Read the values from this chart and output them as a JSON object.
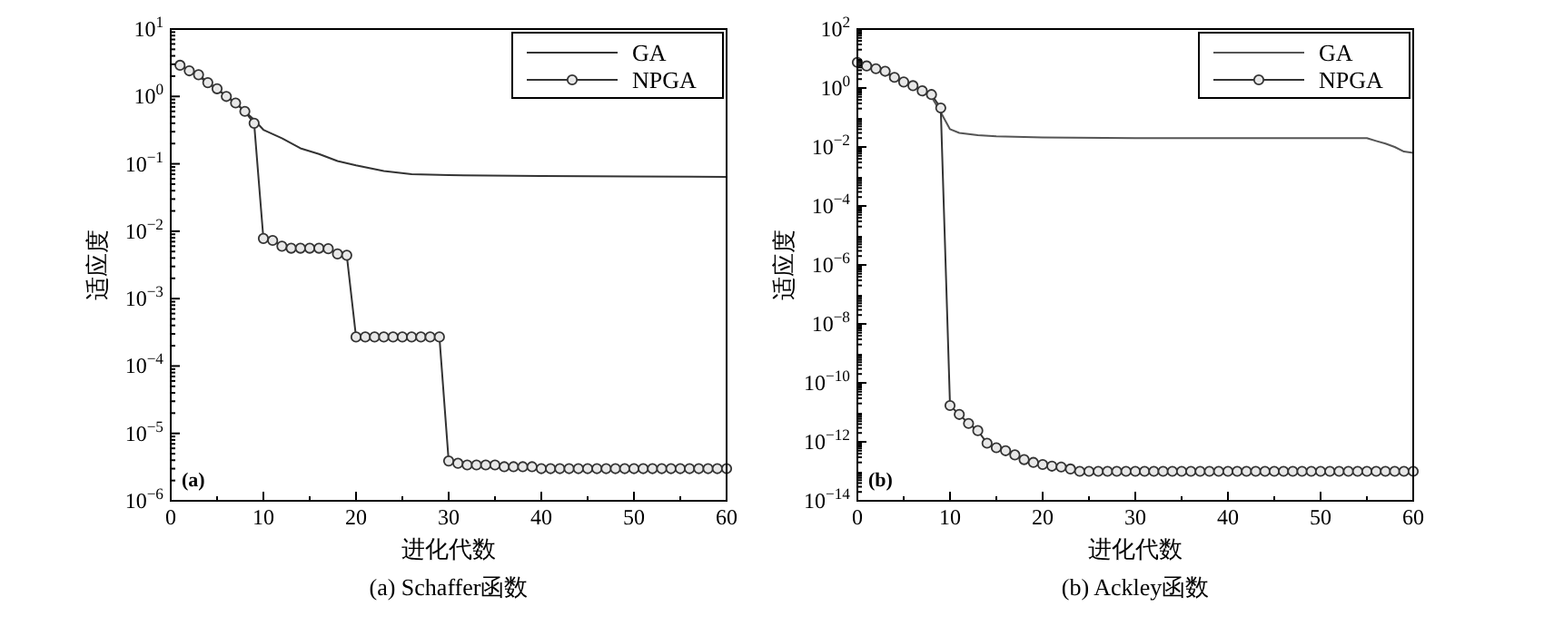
{
  "chart_data": [
    {
      "type": "line",
      "xlabel": "进化代数",
      "ylabel": "适应度",
      "annotations": [
        "(a)",
        "(a) Schaffer函数"
      ],
      "log": "y",
      "legend": "top right",
      "grid": false,
      "xlim": [
        0,
        60
      ],
      "xticks": [
        0,
        10,
        20,
        30,
        40,
        50,
        60
      ],
      "ylim": [
        1e-06,
        10
      ],
      "yticks": [
        {
          "value": 1e-06,
          "label": "10$^{−6}$"
        },
        {
          "value": 1e-05,
          "label": "10$^{−5}$"
        },
        {
          "value": 0.0001,
          "label": "10$^{−4}$"
        },
        {
          "value": 0.001,
          "label": "10$^{−3}$"
        },
        {
          "value": 0.01,
          "label": "10$^{−2}$"
        },
        {
          "value": 0.1,
          "label": "10$^{−1}$"
        },
        {
          "value": 1,
          "label": "10$^{0}$"
        },
        {
          "value": 10,
          "label": "10$^{1}$"
        }
      ],
      "series": [
        {
          "name": "GA",
          "color": "#333333",
          "marker": "none",
          "x": [
            1,
            2,
            3,
            4,
            5,
            6,
            7,
            8,
            9,
            10,
            12,
            14,
            16,
            18,
            20,
            23,
            26,
            30,
            40,
            50,
            60
          ],
          "values": [
            3,
            2.4,
            2.0,
            1.6,
            1.3,
            1.0,
            0.8,
            0.6,
            0.45,
            0.32,
            0.24,
            0.17,
            0.14,
            0.11,
            0.095,
            0.078,
            0.07,
            0.068,
            0.066,
            0.065,
            0.064
          ]
        },
        {
          "name": "NPGA",
          "color": "#333333",
          "marker": "circle",
          "x": [
            1,
            2,
            3,
            4,
            5,
            6,
            7,
            8,
            9,
            10,
            11,
            12,
            13,
            14,
            15,
            16,
            17,
            18,
            19,
            20,
            21,
            22,
            23,
            24,
            25,
            26,
            27,
            28,
            29,
            30,
            31,
            32,
            33,
            34,
            35,
            36,
            37,
            38,
            39,
            40,
            41,
            42,
            43,
            44,
            45,
            46,
            47,
            48,
            49,
            50,
            51,
            52,
            53,
            54,
            55,
            56,
            57,
            58,
            59,
            60
          ],
          "values": [
            2.9,
            2.4,
            2.1,
            1.6,
            1.3,
            1.0,
            0.8,
            0.6,
            0.4,
            0.0078,
            0.0073,
            0.006,
            0.0056,
            0.0056,
            0.0056,
            0.0056,
            0.0055,
            0.0046,
            0.0044,
            0.00027,
            0.00027,
            0.00027,
            0.00027,
            0.00027,
            0.00027,
            0.00027,
            0.00027,
            0.00027,
            0.00027,
            3.9e-06,
            3.6e-06,
            3.4e-06,
            3.4e-06,
            3.4e-06,
            3.4e-06,
            3.2e-06,
            3.2e-06,
            3.2e-06,
            3.2e-06,
            3e-06,
            3e-06,
            3e-06,
            3e-06,
            3e-06,
            3e-06,
            3e-06,
            3e-06,
            3e-06,
            3e-06,
            3e-06,
            3e-06,
            3e-06,
            3e-06,
            3e-06,
            3e-06,
            3e-06,
            3e-06,
            3e-06,
            3e-06,
            3e-06
          ]
        }
      ]
    },
    {
      "type": "line",
      "xlabel": "进化代数",
      "ylabel": "适应度",
      "annotations": [
        "(b)",
        "(b) Ackley函数"
      ],
      "log": "y",
      "legend": "top right",
      "grid": false,
      "xlim": [
        0,
        60
      ],
      "xticks": [
        0,
        10,
        20,
        30,
        40,
        50,
        60
      ],
      "ylim": [
        1e-14,
        100
      ],
      "yticks": [
        {
          "value": 1e-14,
          "label": "10$^{−14}$"
        },
        {
          "value": 1e-12,
          "label": "10$^{−12}$"
        },
        {
          "value": 1e-10,
          "label": "10$^{−10}$"
        },
        {
          "value": 1e-08,
          "label": "10$^{−8}$"
        },
        {
          "value": 1e-06,
          "label": "10$^{−6}$"
        },
        {
          "value": 0.0001,
          "label": "10$^{−4}$"
        },
        {
          "value": 0.01,
          "label": "10$^{−2}$"
        },
        {
          "value": 1,
          "label": "10$^{0}$"
        },
        {
          "value": 100,
          "label": "10$^{2}$"
        }
      ],
      "series": [
        {
          "name": "GA",
          "color": "#555555",
          "marker": "none",
          "x": [
            0,
            2,
            4,
            6,
            8,
            9,
            10,
            11,
            13,
            15,
            20,
            30,
            40,
            50,
            55,
            56,
            57,
            58,
            59,
            60
          ],
          "values": [
            7.4,
            4.5,
            2.3,
            1.2,
            0.5,
            0.15,
            0.04,
            0.03,
            0.025,
            0.023,
            0.021,
            0.02,
            0.02,
            0.02,
            0.02,
            0.016,
            0.013,
            0.01,
            0.007,
            0.0063
          ]
        },
        {
          "name": "NPGA",
          "color": "#333333",
          "marker": "circle",
          "x": [
            0,
            1,
            2,
            3,
            4,
            5,
            6,
            7,
            8,
            9,
            10,
            11,
            12,
            13,
            14,
            15,
            16,
            17,
            18,
            19,
            20,
            21,
            22,
            23,
            24,
            25,
            26,
            27,
            28,
            29,
            30,
            31,
            32,
            33,
            34,
            35,
            36,
            37,
            38,
            39,
            40,
            41,
            42,
            43,
            44,
            45,
            46,
            47,
            48,
            49,
            50,
            51,
            52,
            53,
            54,
            55,
            56,
            57,
            58,
            59,
            60
          ],
          "values": [
            7.4,
            5.6,
            4.5,
            3.7,
            2.3,
            1.6,
            1.2,
            0.8,
            0.6,
            0.21,
            1.7e-11,
            8.5e-12,
            4.2e-12,
            2.4e-12,
            9e-13,
            6.3e-13,
            5e-13,
            3.6e-13,
            2.5e-13,
            2e-13,
            1.7e-13,
            1.5e-13,
            1.4e-13,
            1.2e-13,
            1e-13,
            1e-13,
            1e-13,
            1e-13,
            1e-13,
            1e-13,
            1e-13,
            1e-13,
            1e-13,
            1e-13,
            1e-13,
            1e-13,
            1e-13,
            1e-13,
            1e-13,
            1e-13,
            1e-13,
            1e-13,
            1e-13,
            1e-13,
            1e-13,
            1e-13,
            1e-13,
            1e-13,
            1e-13,
            1e-13,
            1e-13,
            1e-13,
            1e-13,
            1e-13,
            1e-13,
            1e-13,
            1e-13,
            1e-13,
            1e-13,
            1e-13,
            1e-13
          ]
        }
      ]
    }
  ]
}
